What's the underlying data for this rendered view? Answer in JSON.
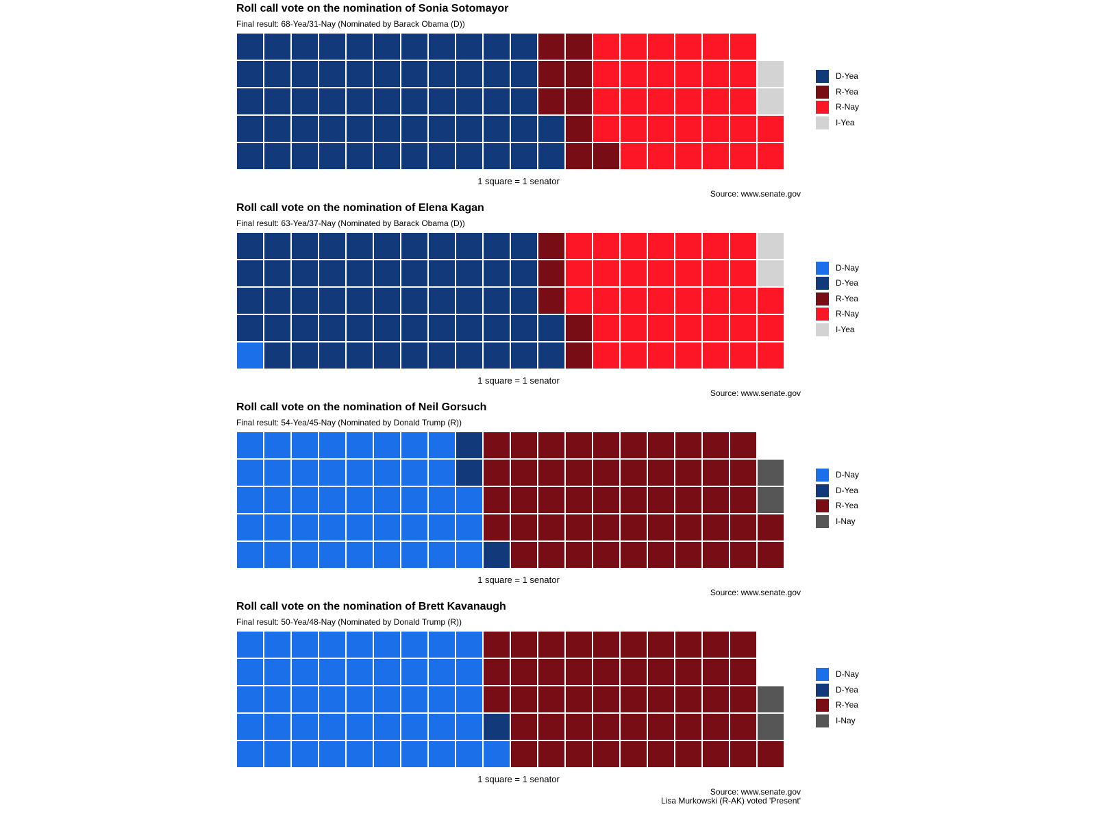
{
  "colors": {
    "D-Yea": "#123a7a",
    "D-Nay": "#1b6fe8",
    "R-Yea": "#780d16",
    "R-Nay": "#fd1726",
    "I-Yea": "#d3d3d3",
    "I-Nay": "#565656"
  },
  "chart_data": [
    {
      "type": "waffle",
      "title": "Roll call vote on the nomination of Sonia Sotomayor",
      "subtitle": "Final result: 68-Yea/31-Nay (Nominated by Barack Obama (D))",
      "caption": "1 square = 1 senator",
      "source_lines": [
        "Source: www.senate.gov"
      ],
      "rows": 5,
      "legend": [
        "D-Yea",
        "R-Yea",
        "R-Nay",
        "I-Yea"
      ],
      "categories": [
        "D-Yea",
        "R-Yea",
        "R-Nay",
        "I-Yea"
      ],
      "values": [
        57,
        9,
        31,
        2
      ]
    },
    {
      "type": "waffle",
      "title": "Roll call vote on the nomination of Elena Kagan",
      "subtitle": "Final result: 63-Yea/37-Nay (Nominated by Barack Obama (D))",
      "caption": "1 square = 1 senator",
      "source_lines": [
        "Source: www.senate.gov"
      ],
      "rows": 5,
      "legend": [
        "D-Nay",
        "D-Yea",
        "R-Yea",
        "R-Nay",
        "I-Yea"
      ],
      "categories": [
        "D-Nay",
        "D-Yea",
        "R-Yea",
        "R-Nay",
        "I-Yea"
      ],
      "values": [
        1,
        56,
        5,
        36,
        2
      ]
    },
    {
      "type": "waffle",
      "title": "Roll call vote on the nomination of Neil Gorsuch",
      "subtitle": "Final result: 54-Yea/45-Nay (Nominated by Donald Trump (R))",
      "caption": "1 square = 1 senator",
      "source_lines": [
        "Source: www.senate.gov"
      ],
      "rows": 5,
      "legend": [
        "D-Nay",
        "D-Yea",
        "R-Yea",
        "I-Nay"
      ],
      "categories": [
        "D-Nay",
        "D-Yea",
        "R-Yea",
        "I-Nay"
      ],
      "values": [
        43,
        3,
        51,
        2
      ]
    },
    {
      "type": "waffle",
      "title": "Roll call vote on the nomination of Brett Kavanaugh",
      "subtitle": "Final result: 50-Yea/48-Nay (Nominated by Donald Trump (R))",
      "caption": "1 square = 1 senator",
      "source_lines": [
        "Source: www.senate.gov",
        "Lisa Murkowski (R-AK) voted 'Present'"
      ],
      "rows": 5,
      "legend": [
        "D-Nay",
        "D-Yea",
        "R-Yea",
        "I-Nay"
      ],
      "categories": [
        "D-Nay",
        "D-Yea",
        "R-Yea",
        "I-Nay"
      ],
      "values": [
        46,
        1,
        49,
        2
      ]
    }
  ]
}
